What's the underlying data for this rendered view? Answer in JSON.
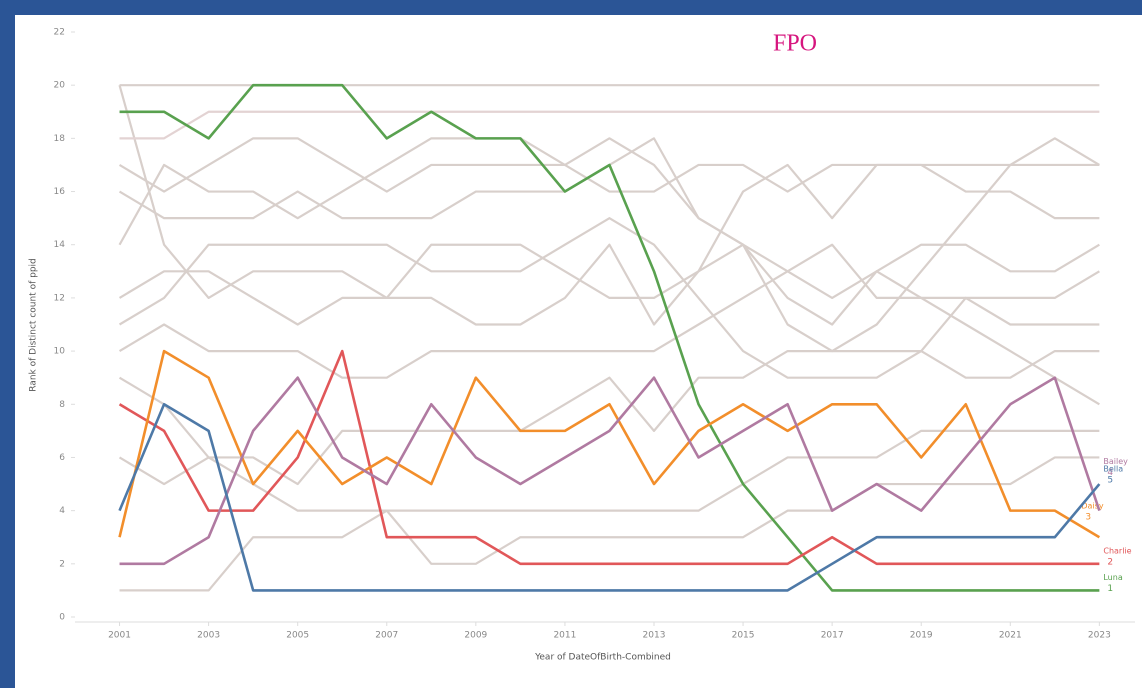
{
  "chart_data": {
    "type": "line",
    "title": "FPO",
    "x_label": "Year of DateOfBirth-Combined",
    "y_label": "Rank of Distinct count of ppid",
    "x": [
      2001,
      2002,
      2003,
      2004,
      2005,
      2006,
      2007,
      2008,
      2009,
      2010,
      2011,
      2012,
      2013,
      2014,
      2015,
      2016,
      2017,
      2018,
      2019,
      2020,
      2021,
      2022,
      2023
    ],
    "xlim": [
      2000,
      2023.8
    ],
    "xticks": [
      2001,
      2003,
      2005,
      2007,
      2009,
      2011,
      2013,
      2015,
      2017,
      2019,
      2021,
      2023
    ],
    "ylim": [
      0,
      22
    ],
    "yticks": [
      0,
      2,
      4,
      6,
      8,
      10,
      12,
      14,
      16,
      18,
      20,
      22
    ],
    "series": [
      {
        "color": "#d8cfcb",
        "values": [
          20,
          14,
          12,
          13,
          13,
          13,
          12,
          12,
          11,
          11,
          12,
          14,
          11,
          13,
          14,
          12,
          11,
          13,
          12,
          11,
          10,
          9,
          8
        ]
      },
      {
        "color": "#d8cfcb",
        "values": [
          16,
          15,
          15,
          15,
          16,
          15,
          15,
          15,
          16,
          16,
          16,
          17,
          18,
          15,
          14,
          13,
          12,
          13,
          14,
          14,
          13,
          13,
          14
        ]
      },
      {
        "color": "#e3d3d3",
        "values": [
          18,
          18,
          19,
          19,
          19,
          19,
          19,
          19,
          19,
          19,
          19,
          19,
          19,
          19,
          19,
          19,
          19,
          19,
          19,
          19,
          19,
          19,
          19
        ]
      },
      {
        "color": "#d8cfcb",
        "values": [
          12,
          13,
          13,
          12,
          11,
          12,
          12,
          14,
          14,
          14,
          13,
          12,
          12,
          13,
          16,
          17,
          15,
          17,
          17,
          16,
          16,
          15,
          15
        ]
      },
      {
        "color": "#d8cfcb",
        "values": [
          17,
          16,
          17,
          18,
          18,
          17,
          16,
          17,
          17,
          17,
          17,
          16,
          16,
          17,
          17,
          16,
          17,
          17,
          17,
          17,
          17,
          17,
          17
        ]
      },
      {
        "color": "#d8cfcb",
        "values": [
          10,
          11,
          10,
          10,
          10,
          9,
          9,
          10,
          10,
          10,
          10,
          10,
          10,
          11,
          12,
          13,
          14,
          12,
          12,
          12,
          11,
          11,
          11
        ]
      },
      {
        "color": "#d8cfcb",
        "values": [
          1,
          1,
          1,
          3,
          3,
          3,
          4,
          4,
          4,
          4,
          4,
          4,
          4,
          4,
          5,
          6,
          6,
          6,
          7,
          7,
          7,
          7,
          7
        ]
      },
      {
        "color": "#d8cfcb",
        "values": [
          6,
          5,
          6,
          6,
          5,
          7,
          7,
          7,
          7,
          7,
          8,
          9,
          7,
          9,
          9,
          10,
          10,
          10,
          10,
          9,
          9,
          10,
          10
        ]
      },
      {
        "color": "#d8cfcb",
        "values": [
          14,
          17,
          16,
          16,
          15,
          16,
          17,
          18,
          18,
          18,
          17,
          18,
          17,
          15,
          14,
          11,
          10,
          11,
          13,
          15,
          17,
          18,
          17
        ]
      },
      {
        "color": "#d8cfcb",
        "values": [
          20,
          20,
          20,
          20,
          20,
          20,
          20,
          20,
          20,
          20,
          20,
          20,
          20,
          20,
          20,
          20,
          20,
          20,
          20,
          20,
          20,
          20,
          20
        ]
      },
      {
        "color": "#d8cfcb",
        "values": [
          11,
          12,
          14,
          14,
          14,
          14,
          14,
          13,
          13,
          13,
          14,
          15,
          14,
          12,
          10,
          9,
          9,
          9,
          10,
          12,
          12,
          12,
          13
        ]
      },
      {
        "color": "#d8cfcb",
        "values": [
          9,
          8,
          6,
          5,
          4,
          4,
          4,
          2,
          2,
          3,
          3,
          3,
          3,
          3,
          3,
          4,
          4,
          5,
          5,
          5,
          5,
          6,
          6
        ]
      },
      {
        "name": "Luna",
        "color": "#59a14f",
        "values": [
          19,
          19,
          18,
          20,
          20,
          20,
          18,
          19,
          18,
          18,
          16,
          17,
          13,
          8,
          5,
          3,
          1,
          1,
          1,
          1,
          1,
          1,
          1
        ]
      },
      {
        "name": "Charlie",
        "color": "#e15759",
        "values": [
          8,
          7,
          4,
          4,
          6,
          10,
          3,
          3,
          3,
          2,
          2,
          2,
          2,
          2,
          2,
          2,
          3,
          2,
          2,
          2,
          2,
          2,
          2
        ]
      },
      {
        "name": "Daisy",
        "color": "#f28e2b",
        "values": [
          3,
          10,
          9,
          5,
          7,
          5,
          6,
          5,
          9,
          7,
          7,
          8,
          5,
          7,
          8,
          7,
          8,
          8,
          6,
          8,
          4,
          4,
          3
        ]
      },
      {
        "name": "Bailey",
        "color": "#b07aa1",
        "values": [
          2,
          2,
          3,
          7,
          9,
          6,
          5,
          8,
          6,
          5,
          6,
          7,
          9,
          6,
          7,
          8,
          4,
          5,
          4,
          6,
          8,
          9,
          4
        ]
      },
      {
        "name": "Bella",
        "color": "#4e79a7",
        "values": [
          4,
          8,
          7,
          1,
          1,
          1,
          1,
          1,
          1,
          1,
          1,
          1,
          1,
          1,
          1,
          1,
          2,
          3,
          3,
          3,
          3,
          3,
          5
        ]
      }
    ]
  }
}
